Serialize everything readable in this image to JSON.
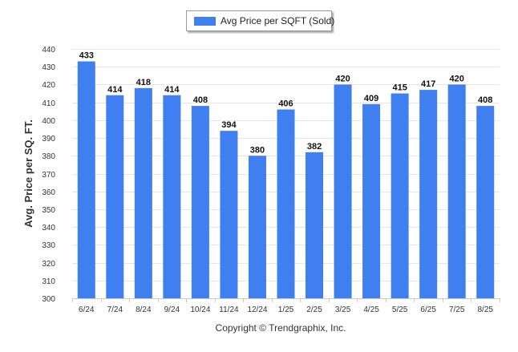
{
  "chart_data": {
    "type": "bar",
    "legend": {
      "label": "Avg Price per SQFT (Sold)",
      "placement": "top-center"
    },
    "categories": [
      "6/24",
      "7/24",
      "8/24",
      "9/24",
      "10/24",
      "11/24",
      "12/24",
      "1/25",
      "2/25",
      "3/25",
      "4/25",
      "5/25",
      "6/25",
      "7/25",
      "8/25"
    ],
    "series": [
      {
        "name": "Avg Price per SQFT (Sold)",
        "values": [
          433,
          414,
          418,
          414,
          408,
          394,
          380,
          406,
          382,
          420,
          409,
          415,
          417,
          420,
          408
        ]
      }
    ],
    "ylabel": "Avg. Price per SQ. FT.",
    "xlabel": "",
    "ylim": [
      300,
      440
    ],
    "yticks": [
      300,
      310,
      320,
      330,
      340,
      350,
      360,
      370,
      380,
      390,
      400,
      410,
      420,
      430,
      440
    ],
    "grid": true,
    "bar_color": "#3f7fef",
    "data_labels": true
  },
  "footer": {
    "copyright": "Copyright © Trendgraphix, Inc."
  }
}
